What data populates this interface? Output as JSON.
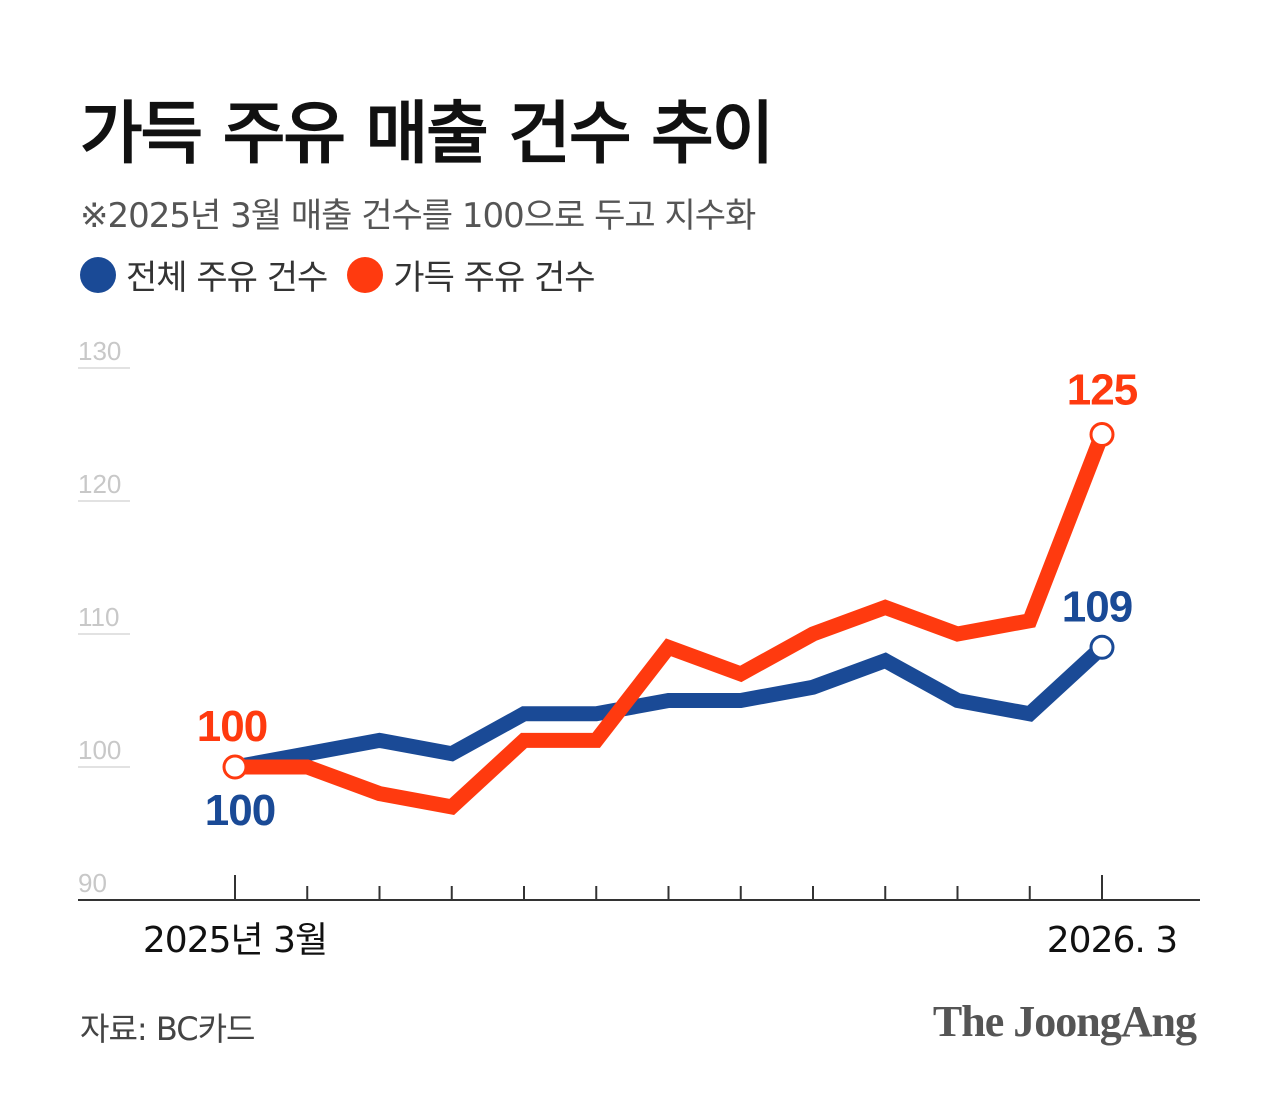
{
  "title": "가득 주유 매출 건수 추이",
  "subtitle": "※2025년 3월 매출 건수를 100으로 두고 지수화",
  "legend": [
    {
      "label": "전체 주유 건수",
      "color": "#1a4a96"
    },
    {
      "label": "가득 주유 건수",
      "color": "#ff3a0f"
    }
  ],
  "source": "자료: BC카드",
  "logo": "The JoongAng",
  "chart_data": {
    "type": "line",
    "title": "가득 주유 매출 건수 추이",
    "ylim": [
      90,
      130
    ],
    "yticks": [
      90,
      100,
      110,
      120,
      130
    ],
    "x": [
      "2025년 3월",
      "",
      "",
      "",
      "",
      "",
      "",
      "",
      "",
      "",
      "",
      "",
      "2026. 3"
    ],
    "x_labels_shown": [
      "2025년 3월",
      "2026. 3"
    ],
    "series": [
      {
        "name": "전체 주유 건수",
        "color": "#1a4a96",
        "values": [
          100,
          101,
          102,
          101,
          104,
          104,
          105,
          105,
          106,
          108,
          105,
          104,
          109
        ]
      },
      {
        "name": "가득 주유 건수",
        "color": "#ff3a0f",
        "values": [
          100,
          100,
          98,
          97,
          102,
          102,
          109,
          107,
          110,
          112,
          110,
          111,
          125
        ]
      }
    ],
    "annotations": [
      {
        "series": 0,
        "index": 0,
        "text": "100"
      },
      {
        "series": 1,
        "index": 0,
        "text": "100"
      },
      {
        "series": 0,
        "index": 12,
        "text": "109"
      },
      {
        "series": 1,
        "index": 12,
        "text": "125"
      }
    ],
    "grid": "horizontal"
  }
}
